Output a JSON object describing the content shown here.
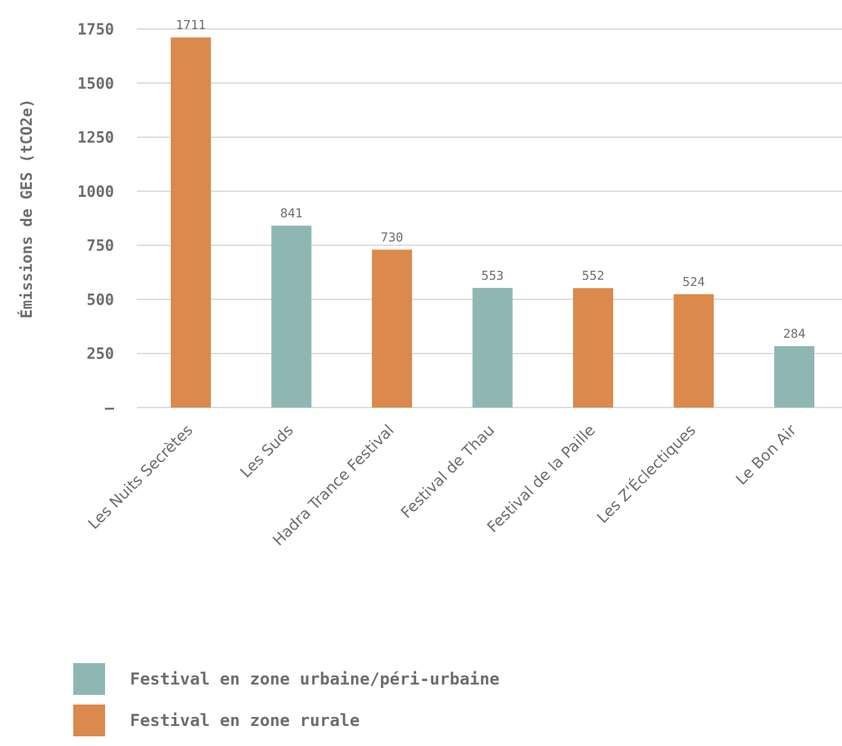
{
  "chart_data": {
    "type": "bar",
    "ylabel": "Émissions de GES (tCO2e)",
    "xlabel": "",
    "ylim": [
      0,
      1750
    ],
    "yticks": [
      {
        "value": 0,
        "label": "–"
      },
      {
        "value": 250,
        "label": "250"
      },
      {
        "value": 500,
        "label": "500"
      },
      {
        "value": 750,
        "label": "750"
      },
      {
        "value": 1000,
        "label": "1000"
      },
      {
        "value": 1250,
        "label": "1250"
      },
      {
        "value": 1500,
        "label": "1500"
      },
      {
        "value": 1750,
        "label": "1750"
      }
    ],
    "grid": true,
    "legend_position": "bottom-left",
    "categories": [
      "Les Nuits Secrètes",
      "Les Suds",
      "Hadra Trance Festival",
      "Festival de Thau",
      "Festival de la Paille",
      "Les Z'Éclectiques",
      "Le Bon Air"
    ],
    "values": [
      1711,
      841,
      730,
      553,
      552,
      524,
      284
    ],
    "value_labels": [
      "1711",
      "841",
      "730",
      "553",
      "552",
      "524",
      "284"
    ],
    "groups": [
      "rurale",
      "urbaine",
      "rurale",
      "urbaine",
      "rurale",
      "rurale",
      "urbaine"
    ],
    "series": [
      {
        "key": "urbaine",
        "name": "Festival en zone urbaine/péri-urbaine",
        "color": "#8eb7b4"
      },
      {
        "key": "rurale",
        "name": "Festival en zone rurale",
        "color": "#db894c"
      }
    ]
  }
}
